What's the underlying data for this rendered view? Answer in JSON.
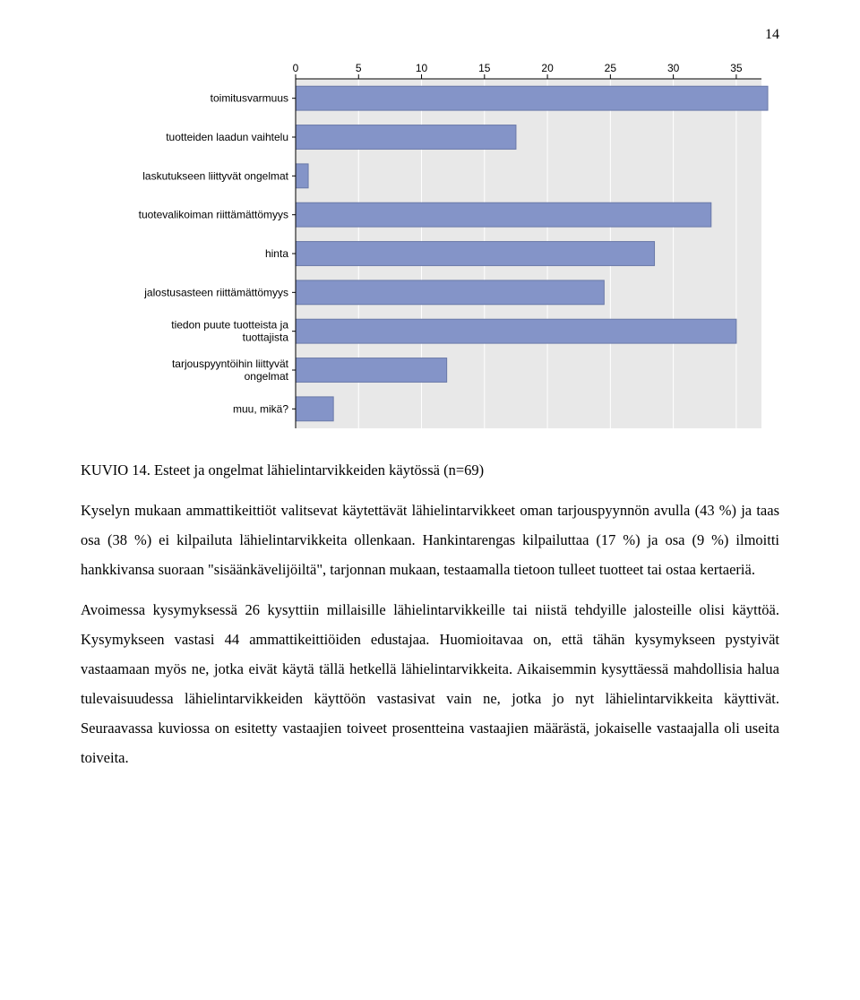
{
  "page_number": "14",
  "chart": {
    "type": "bar-horizontal",
    "x_axis": {
      "min": 0,
      "max": 37,
      "ticks": [
        0,
        5,
        10,
        15,
        20,
        25,
        30,
        35
      ]
    },
    "plot_bg": "#e8e8e8",
    "bar_fill": "#8494c8",
    "bar_stroke": "#6a79a8",
    "axis_line": "#000000",
    "tick_text_color": "#000000",
    "axis_font_family": "Tahoma, Arial, sans-serif",
    "axis_font_size": 12,
    "rows": [
      {
        "label_lines": [
          "toimitusvarmuus"
        ],
        "value": 37.5
      },
      {
        "label_lines": [
          "tuotteiden laadun vaihtelu"
        ],
        "value": 17.5
      },
      {
        "label_lines": [
          "laskutukseen liittyvät ongelmat"
        ],
        "value": 1
      },
      {
        "label_lines": [
          "tuotevalikoiman riittämättömyys"
        ],
        "value": 33
      },
      {
        "label_lines": [
          "hinta"
        ],
        "value": 28.5
      },
      {
        "label_lines": [
          "jalostusasteen riittämättömyys"
        ],
        "value": 24.5
      },
      {
        "label_lines": [
          "tiedon puute tuotteista ja",
          "tuottajista"
        ],
        "value": 35
      },
      {
        "label_lines": [
          "tarjouspyyntöihin liittyvät",
          "ongelmat"
        ],
        "value": 12
      },
      {
        "label_lines": [
          "muu, mikä?"
        ],
        "value": 3
      }
    ]
  },
  "caption_prefix": "KUVIO 14. ",
  "caption_text": "Esteet ja ongelmat lähielintarvikkeiden käytössä (n=69)",
  "paragraph1": "Kyselyn mukaan ammattikeittiöt valitsevat käytettävät lähielintarvikkeet oman tarjouspyynnön avulla (43 %) ja taas osa (38 %) ei kilpailuta lähielintarvikkeita ollenkaan. Hankintarengas kilpailuttaa (17 %) ja osa (9 %) ilmoitti hankkivansa suoraan \"sisäänkävelijöiltä\", tarjonnan mukaan, testaamalla tietoon tulleet tuotteet tai ostaa kertaeriä.",
  "paragraph2": "Avoimessa kysymyksessä 26 kysyttiin millaisille lähielintarvikkeille tai niistä tehdyille jalosteille olisi käyttöä. Kysymykseen vastasi 44 ammattikeittiöiden edustajaa. Huomioitavaa on, että tähän kysymykseen pystyivät vastaamaan myös ne, jotka eivät käytä tällä hetkellä lähielintarvikkeita. Aikaisemmin kysyttäessä mahdollisia halua tulevaisuudessa lähielintarvikkeiden käyttöön vastasivat vain ne, jotka jo nyt lähielintarvikkeita käyttivät. Seuraavassa kuviossa on esitetty vastaajien toiveet prosentteina vastaajien määrästä, jokaiselle vastaajalla oli useita toiveita."
}
